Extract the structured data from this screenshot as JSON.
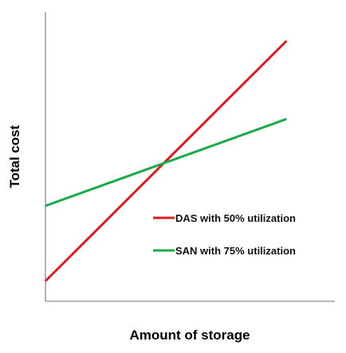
{
  "chart_data": {
    "type": "line",
    "title": "",
    "xlabel": "Amount of storage",
    "ylabel": "Total cost",
    "xlim": [
      0,
      10
    ],
    "ylim": [
      0,
      10
    ],
    "grid": false,
    "legend_position": "bottom-right",
    "x": [
      0,
      8.33
    ],
    "series": [
      {
        "name": "DAS with 50% utilization",
        "color": "#e01b1b",
        "values": [
          0.7,
          9.0
        ]
      },
      {
        "name": "SAN with 75% utilization",
        "color": "#1aab4a",
        "values": [
          3.3,
          6.3
        ]
      }
    ]
  }
}
